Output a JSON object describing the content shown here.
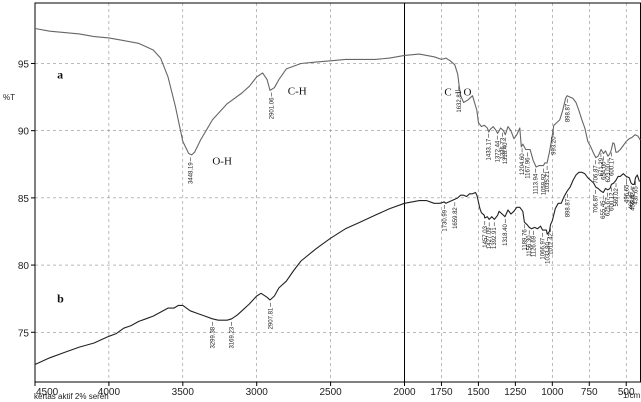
{
  "chart_data": {
    "type": "line",
    "title": "",
    "xlabel": "1/cm",
    "ylabel": "%T",
    "xlim": [
      4500,
      400
    ],
    "ylim": [
      71.3,
      99.5
    ],
    "x_ticks": [
      "4500",
      "4000",
      "3500",
      "3000",
      "2500",
      "2000",
      "1750",
      "1500",
      "1250",
      "1000",
      "750",
      "500"
    ],
    "y_ticks": [
      "75",
      "80",
      "85",
      "90",
      "95"
    ],
    "footer_note": "kertas aktif 2% sereh",
    "series": [
      {
        "name": "a",
        "x": [
          4500,
          4400,
          4300,
          4200,
          4100,
          4000,
          3900,
          3800,
          3700,
          3650,
          3600,
          3550,
          3500,
          3460,
          3440,
          3420,
          3380,
          3300,
          3200,
          3100,
          3050,
          3000,
          2960,
          2930,
          2910,
          2880,
          2850,
          2800,
          2700,
          2600,
          2500,
          2400,
          2300,
          2200,
          2100,
          2000,
          1900,
          1850,
          1800,
          1750,
          1720,
          1690,
          1660,
          1640,
          1630,
          1620,
          1600,
          1570,
          1540,
          1510,
          1500,
          1480,
          1460,
          1440,
          1430,
          1420,
          1400,
          1380,
          1370,
          1350,
          1330,
          1318,
          1300,
          1280,
          1260,
          1240,
          1220,
          1210,
          1200,
          1180,
          1167,
          1150,
          1130,
          1110,
          1090,
          1060,
          1050,
          1035,
          1020,
          1005,
          990,
          970,
          950,
          930,
          910,
          900,
          880,
          860,
          840,
          820,
          800,
          780,
          760,
          740,
          720,
          706,
          690,
          670,
          654,
          640,
          624,
          610,
          600,
          590,
          580,
          570,
          560,
          540,
          520,
          500,
          480,
          460,
          440,
          420,
          405
        ],
        "y": [
          97.6,
          97.4,
          97.3,
          97.2,
          97.0,
          96.9,
          96.7,
          96.5,
          96.0,
          95.4,
          94.0,
          91.8,
          89.2,
          88.3,
          88.2,
          88.4,
          89.3,
          90.8,
          92.0,
          92.8,
          93.3,
          94.0,
          94.3,
          93.8,
          93.0,
          93.2,
          93.8,
          94.6,
          95.0,
          95.1,
          95.2,
          95.3,
          95.3,
          95.3,
          95.4,
          95.6,
          95.7,
          95.6,
          95.5,
          95.3,
          95.4,
          95.2,
          94.9,
          94.2,
          93.3,
          92.6,
          92.1,
          92.3,
          92.6,
          91.5,
          90.6,
          90.3,
          90.4,
          90.2,
          89.9,
          90.1,
          90.3,
          90.0,
          89.8,
          90.2,
          90.0,
          89.7,
          90.3,
          90.0,
          89.4,
          89.7,
          90.2,
          88.8,
          89.0,
          88.6,
          88.6,
          88.6,
          87.8,
          87.3,
          87.4,
          87.4,
          87.6,
          87.6,
          88.4,
          89.3,
          90.4,
          90.6,
          90.8,
          91.5,
          92.4,
          92.6,
          92.5,
          92.4,
          92.1,
          91.5,
          90.8,
          90.2,
          89.2,
          88.8,
          88.3,
          88.0,
          88.1,
          88.6,
          88.3,
          88.5,
          88.1,
          88.3,
          88.6,
          89.1,
          89.0,
          88.4,
          88.4,
          88.6,
          88.9,
          89.2,
          89.4,
          89.5,
          89.7,
          89.6,
          89.3
        ]
      },
      {
        "name": "b",
        "x": [
          4500,
          4400,
          4300,
          4200,
          4100,
          4000,
          3950,
          3900,
          3850,
          3800,
          3750,
          3700,
          3650,
          3600,
          3560,
          3530,
          3500,
          3450,
          3400,
          3350,
          3300,
          3260,
          3200,
          3169,
          3130,
          3100,
          3050,
          3000,
          2970,
          2930,
          2910,
          2880,
          2850,
          2800,
          2750,
          2700,
          2600,
          2500,
          2400,
          2300,
          2200,
          2100,
          2000,
          1900,
          1850,
          1800,
          1760,
          1731,
          1720,
          1700,
          1680,
          1660,
          1640,
          1620,
          1600,
          1580,
          1560,
          1540,
          1520,
          1510,
          1500,
          1490,
          1480,
          1460,
          1457,
          1440,
          1427,
          1410,
          1392,
          1370,
          1360,
          1340,
          1320,
          1300,
          1280,
          1260,
          1240,
          1220,
          1200,
          1189,
          1170,
          1156,
          1140,
          1120,
          1100,
          1080,
          1066,
          1040,
          1034,
          1020,
          1012,
          1000,
          980,
          960,
          940,
          920,
          900,
          880,
          860,
          840,
          820,
          800,
          780,
          760,
          740,
          720,
          706,
          690,
          670,
          655,
          640,
          625,
          610,
          600,
          585,
          570,
          555,
          540,
          520,
          500,
          480,
          467,
          456,
          445,
          437,
          425,
          410
        ],
        "y": [
          72.6,
          73.1,
          73.5,
          73.9,
          74.2,
          74.7,
          74.9,
          75.3,
          75.5,
          75.8,
          76.0,
          76.2,
          76.5,
          76.8,
          76.8,
          77.0,
          77.0,
          76.6,
          76.4,
          76.2,
          76.0,
          75.9,
          75.9,
          76.0,
          76.3,
          76.6,
          77.1,
          77.7,
          77.9,
          77.6,
          77.4,
          77.7,
          78.3,
          78.8,
          79.6,
          80.3,
          81.2,
          82.0,
          82.7,
          83.2,
          83.7,
          84.2,
          84.6,
          84.8,
          84.8,
          84.6,
          84.6,
          84.7,
          84.6,
          84.7,
          84.8,
          84.9,
          85.0,
          85.2,
          85.2,
          85.1,
          85.3,
          85.3,
          85.4,
          85.2,
          84.7,
          84.2,
          83.9,
          83.7,
          83.5,
          83.6,
          83.4,
          83.6,
          83.4,
          83.7,
          84.0,
          83.8,
          83.6,
          84.1,
          83.8,
          84.0,
          84.3,
          84.3,
          84.0,
          83.2,
          83.0,
          82.8,
          82.7,
          82.8,
          82.7,
          82.9,
          82.6,
          82.6,
          82.3,
          82.5,
          83.0,
          83.3,
          84.2,
          84.6,
          84.6,
          85.1,
          85.5,
          85.8,
          86.3,
          86.7,
          86.9,
          86.9,
          86.8,
          86.5,
          86.3,
          86.1,
          85.8,
          85.7,
          85.5,
          85.4,
          85.7,
          85.6,
          85.7,
          86.0,
          86.1,
          86.3,
          86.6,
          86.6,
          86.8,
          86.6,
          86.5,
          86.1,
          86.0,
          86.0,
          86.5,
          86.7,
          86.2
        ]
      }
    ],
    "series_labels": [
      {
        "text": "a",
        "x": 4350,
        "y": 93.9
      },
      {
        "text": "b",
        "x": 4350,
        "y": 77.2
      }
    ],
    "annotations": [
      {
        "text": "O-H",
        "x": 3300,
        "y": 87.5
      },
      {
        "text": "C-H",
        "x": 2790,
        "y": 92.7
      },
      {
        "text": "C = O",
        "x": 1730,
        "y": 92.6
      }
    ],
    "peak_labels_a": [
      "3448.19",
      "2901.06",
      "1632.81",
      "1433.17",
      "1372.44",
      "1336.73",
      "1318.40",
      "1204.60",
      "1167.96",
      "1113.94",
      "1059.92",
      "1035.21",
      "993.20",
      "898.87",
      "706.87",
      "671.29",
      "654.00",
      "623.00",
      "600.17"
    ],
    "peak_labels_b": [
      "3299.38",
      "3169.23",
      "2907.81",
      "1730.99",
      "1659.82",
      "1457.03",
      "1427.09",
      "1392.91",
      "1318.40",
      "1189.76",
      "1156.30",
      "1126.69",
      "1066.97",
      "1033.80",
      "1012.42",
      "898.87",
      "706.87",
      "655.45",
      "625.67",
      "600.12",
      "569.02",
      "496.65",
      "466.47",
      "456.82",
      "437.65"
    ]
  }
}
